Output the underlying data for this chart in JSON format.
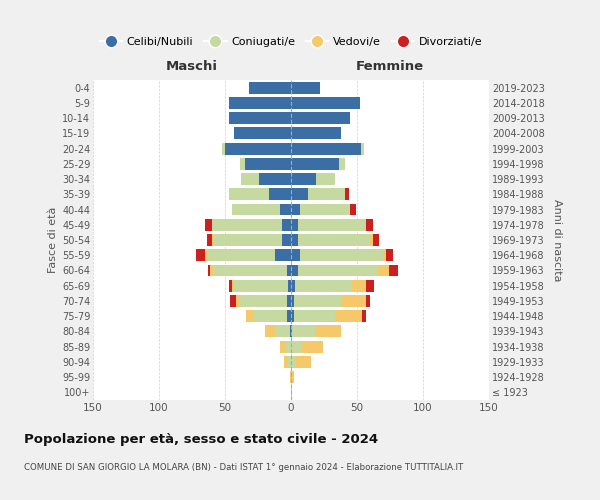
{
  "age_groups": [
    "100+",
    "95-99",
    "90-94",
    "85-89",
    "80-84",
    "75-79",
    "70-74",
    "65-69",
    "60-64",
    "55-59",
    "50-54",
    "45-49",
    "40-44",
    "35-39",
    "30-34",
    "25-29",
    "20-24",
    "15-19",
    "10-14",
    "5-9",
    "0-4"
  ],
  "birth_years": [
    "≤ 1923",
    "1924-1928",
    "1929-1933",
    "1934-1938",
    "1939-1943",
    "1944-1948",
    "1949-1953",
    "1954-1958",
    "1959-1963",
    "1964-1968",
    "1969-1973",
    "1974-1978",
    "1979-1983",
    "1984-1988",
    "1989-1993",
    "1994-1998",
    "1999-2003",
    "2004-2008",
    "2009-2013",
    "2014-2018",
    "2019-2023"
  ],
  "colors": {
    "celibi": "#3a6ea5",
    "coniugati": "#c5d9a0",
    "vedovi": "#f5c96a",
    "divorziati": "#cc1f1f"
  },
  "maschi": {
    "celibi": [
      0,
      0,
      0,
      0,
      1,
      3,
      3,
      2,
      3,
      12,
      7,
      7,
      8,
      17,
      24,
      35,
      50,
      43,
      47,
      47,
      32
    ],
    "coniugati": [
      0,
      0,
      2,
      4,
      11,
      25,
      36,
      41,
      56,
      52,
      52,
      53,
      37,
      30,
      14,
      4,
      2,
      0,
      0,
      0,
      0
    ],
    "vedovi": [
      0,
      1,
      3,
      4,
      8,
      6,
      3,
      2,
      2,
      1,
      1,
      0,
      0,
      0,
      0,
      0,
      0,
      0,
      0,
      0,
      0
    ],
    "divorziati": [
      0,
      0,
      0,
      0,
      0,
      0,
      4,
      2,
      2,
      7,
      4,
      5,
      0,
      0,
      0,
      0,
      0,
      0,
      0,
      0,
      0
    ]
  },
  "femmine": {
    "celibi": [
      0,
      0,
      0,
      0,
      1,
      2,
      2,
      3,
      5,
      7,
      5,
      5,
      7,
      13,
      19,
      36,
      53,
      38,
      45,
      52,
      22
    ],
    "coniugati": [
      0,
      0,
      4,
      8,
      17,
      31,
      37,
      43,
      61,
      63,
      55,
      51,
      38,
      28,
      14,
      5,
      2,
      0,
      0,
      0,
      0
    ],
    "vedovi": [
      1,
      2,
      11,
      16,
      20,
      21,
      18,
      11,
      8,
      2,
      2,
      1,
      0,
      0,
      0,
      0,
      0,
      0,
      0,
      0,
      0
    ],
    "divorziati": [
      0,
      0,
      0,
      0,
      0,
      3,
      3,
      6,
      7,
      5,
      5,
      5,
      4,
      3,
      0,
      0,
      0,
      0,
      0,
      0,
      0
    ]
  },
  "legend_labels": [
    "Celibi/Nubili",
    "Coniugati/e",
    "Vedovi/e",
    "Divorziati/e"
  ],
  "title": "Popolazione per età, sesso e stato civile - 2024",
  "subtitle": "COMUNE DI SAN GIORGIO LA MOLARA (BN) - Dati ISTAT 1° gennaio 2024 - Elaborazione TUTTITALIA.IT",
  "xlabel_left": "Maschi",
  "xlabel_right": "Femmine",
  "ylabel_left": "Fasce di età",
  "ylabel_right": "Anni di nascita",
  "xlim": 150,
  "bg_color": "#f0f0f0",
  "plot_bg_color": "#ffffff",
  "grid_color": "#cccccc"
}
